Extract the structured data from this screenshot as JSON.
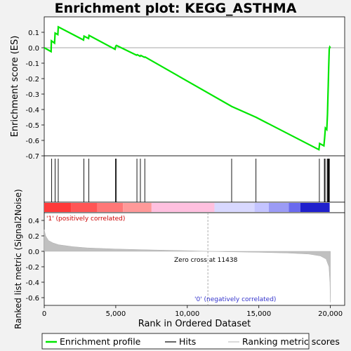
{
  "chart_data": {
    "type": "line",
    "title": "Enrichment plot: KEGG_ASTHMA",
    "es_panel": {
      "ylabel": "Enrichment score (ES)",
      "ylim": [
        -0.7,
        0.2
      ],
      "yticks": [
        "0.1",
        "0.0",
        "-0.1",
        "-0.2",
        "-0.3",
        "-0.4",
        "-0.5",
        "-0.6",
        "-0.7"
      ],
      "ytick_values": [
        0.1,
        0.0,
        -0.1,
        -0.2,
        -0.3,
        -0.4,
        -0.5,
        -0.6,
        -0.7
      ],
      "line_color": "#00e600",
      "profile": [
        [
          0,
          0.0
        ],
        [
          480,
          -0.025
        ],
        [
          500,
          0.045
        ],
        [
          720,
          0.03
        ],
        [
          760,
          0.095
        ],
        [
          950,
          0.085
        ],
        [
          980,
          0.135
        ],
        [
          2750,
          0.05
        ],
        [
          2780,
          0.075
        ],
        [
          3100,
          0.06
        ],
        [
          3130,
          0.08
        ],
        [
          4950,
          -0.01
        ],
        [
          5000,
          0.01
        ],
        [
          5050,
          0.015
        ],
        [
          6450,
          -0.048
        ],
        [
          6500,
          -0.045
        ],
        [
          6700,
          -0.055
        ],
        [
          6750,
          -0.05
        ],
        [
          7000,
          -0.062
        ],
        [
          7050,
          -0.06
        ],
        [
          13100,
          -0.38
        ],
        [
          14800,
          -0.45
        ],
        [
          19200,
          -0.66
        ],
        [
          19250,
          -0.62
        ],
        [
          19550,
          -0.635
        ],
        [
          19600,
          -0.58
        ],
        [
          19650,
          -0.52
        ],
        [
          19750,
          -0.53
        ],
        [
          19800,
          -0.43
        ],
        [
          19820,
          -0.34
        ],
        [
          19850,
          -0.24
        ],
        [
          19880,
          -0.13
        ],
        [
          19920,
          -0.01
        ],
        [
          19960,
          0.005
        ],
        [
          20000,
          0.0
        ]
      ]
    },
    "hits": [
      520,
      760,
      980,
      2770,
      3120,
      4980,
      5040,
      6480,
      6720,
      7030,
      13100,
      14800,
      19230,
      19580,
      19630,
      19780,
      19830,
      19860,
      19900,
      19930
    ],
    "ranked_panel": {
      "ylabel": "Ranked list metric (Signal2Noise)",
      "ylim": [
        -0.7,
        0.5
      ],
      "yticks": [
        "0.4",
        "0.2",
        "0.0",
        "-0.2",
        "-0.4",
        "-0.6"
      ],
      "ytick_values": [
        0.4,
        0.2,
        0.0,
        -0.2,
        -0.4,
        -0.6
      ],
      "metric_profile": [
        [
          0,
          0.28
        ],
        [
          100,
          0.2
        ],
        [
          300,
          0.14
        ],
        [
          600,
          0.11
        ],
        [
          1000,
          0.085
        ],
        [
          2000,
          0.06
        ],
        [
          3000,
          0.045
        ],
        [
          5000,
          0.03
        ],
        [
          7500,
          0.018
        ],
        [
          10000,
          0.008
        ],
        [
          11438,
          0.0
        ],
        [
          13000,
          -0.006
        ],
        [
          15000,
          -0.013
        ],
        [
          17000,
          -0.022
        ],
        [
          18500,
          -0.035
        ],
        [
          19300,
          -0.06
        ],
        [
          19700,
          -0.1
        ],
        [
          19900,
          -0.2
        ],
        [
          19970,
          -0.4
        ],
        [
          20000,
          -0.66
        ]
      ],
      "positive_label": "'1' (positively correlated)",
      "negative_label": "'0' (negatively correlated)",
      "zero_cross_label": "Zero cross at 11438",
      "zero_cross": 11438
    },
    "xlabel": "Rank in Ordered Dataset",
    "xlim": [
      0,
      21000
    ],
    "xticks": [
      "0",
      "5,000",
      "10,000",
      "15,000",
      "20,000"
    ],
    "xtick_values": [
      0,
      5000,
      10000,
      15000,
      20000
    ],
    "rank_bar_colors": [
      "#ff3a3a",
      "#ff5555",
      "#ff7777",
      "#ff9999",
      "#ffc0df",
      "#d8d8ff",
      "#c4c4ff",
      "#9b9bf5",
      "#6a6aee",
      "#2020cc"
    ],
    "legend": [
      {
        "label": "Enrichment profile",
        "color": "#00e600"
      },
      {
        "label": "Hits",
        "color": "#000000"
      },
      {
        "label": "Ranking metric scores",
        "color": "#c0c0c0"
      }
    ]
  }
}
